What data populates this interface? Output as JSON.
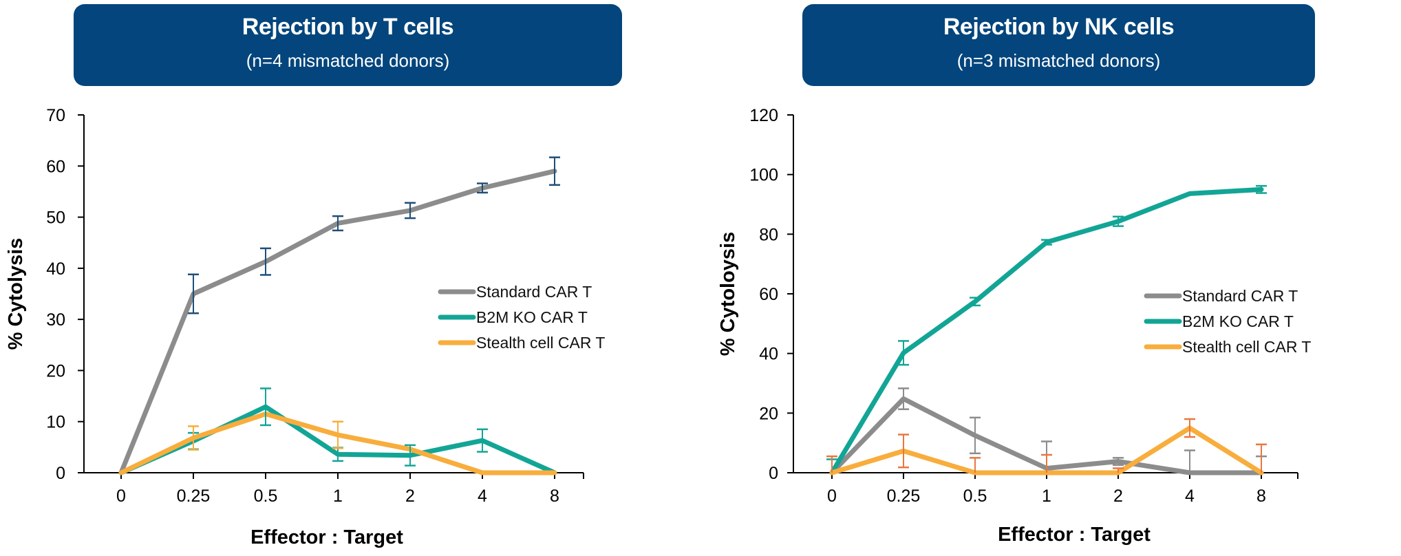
{
  "colors": {
    "banner_bg": "#03457c",
    "standard": "#8c8c8c",
    "b2m": "#12a596",
    "stealth": "#f8ad3c",
    "err_left_standard": "#1f4e79",
    "err_right_standard": "#8c8c8c",
    "err_right_stealth": "#e8773f"
  },
  "chart_data": [
    {
      "type": "line",
      "title": "Rejection by T cells",
      "subtitle": "(n=4 mismatched donors)",
      "xlabel": "Effector : Target",
      "ylabel": "% Cytolysis",
      "categories": [
        "0",
        "0.25",
        "0.5",
        "1",
        "2",
        "4",
        "8"
      ],
      "ylim": [
        0,
        70
      ],
      "yticks": [
        0,
        10,
        20,
        30,
        40,
        50,
        60,
        70
      ],
      "grid": false,
      "legend": "right",
      "series": [
        {
          "name": "Standard CAR T",
          "color_key": "standard",
          "err_color_key": "err_left_standard",
          "values": [
            0,
            35,
            41.3,
            48.8,
            51.3,
            55.7,
            59
          ],
          "errors": [
            null,
            3.8,
            2.6,
            1.4,
            1.5,
            0.9,
            2.7
          ]
        },
        {
          "name": "B2M KO CAR T",
          "color_key": "b2m",
          "err_color_key": "b2m",
          "values": [
            0,
            6.2,
            12.9,
            3.6,
            3.4,
            6.3,
            0
          ],
          "errors": [
            null,
            1.6,
            3.6,
            1.3,
            2.0,
            2.2,
            null
          ]
        },
        {
          "name": "Stealth cell CAR T",
          "color_key": "stealth",
          "err_color_key": "stealth",
          "values": [
            0,
            6.8,
            11.5,
            7.4,
            4.6,
            0,
            0
          ],
          "errors": [
            null,
            2.3,
            null,
            2.6,
            null,
            null,
            null
          ]
        }
      ]
    },
    {
      "type": "line",
      "title": "Rejection by NK cells",
      "subtitle": "(n=3 mismatched donors)",
      "xlabel": "Effector : Target",
      "ylabel": "% Cytoloysis",
      "categories": [
        "0",
        "0.25",
        "0.5",
        "1",
        "2",
        "4",
        "8"
      ],
      "ylim": [
        0,
        120
      ],
      "yticks": [
        0,
        20,
        40,
        60,
        80,
        100,
        120
      ],
      "grid": false,
      "legend": "right",
      "series": [
        {
          "name": "Standard CAR T",
          "color_key": "standard",
          "err_color_key": "err_right_standard",
          "values": [
            0,
            24.8,
            12.5,
            1.5,
            3.8,
            0,
            0
          ],
          "errors": [
            null,
            3.5,
            6,
            9,
            1.2,
            7.5,
            5.5
          ]
        },
        {
          "name": "B2M KO CAR T",
          "color_key": "b2m",
          "err_color_key": "b2m",
          "values": [
            0,
            40.2,
            57.4,
            77.3,
            84.3,
            93.6,
            95
          ],
          "errors": [
            4.5,
            4,
            1.3,
            0.8,
            1.6,
            null,
            1.2
          ]
        },
        {
          "name": "Stealth cell CAR T",
          "color_key": "stealth",
          "err_color_key": "err_right_stealth",
          "values": [
            0,
            7.3,
            0,
            0,
            0,
            15,
            0
          ],
          "errors": [
            5.5,
            5.5,
            5,
            6,
            1.5,
            3,
            9.5
          ]
        }
      ]
    }
  ]
}
